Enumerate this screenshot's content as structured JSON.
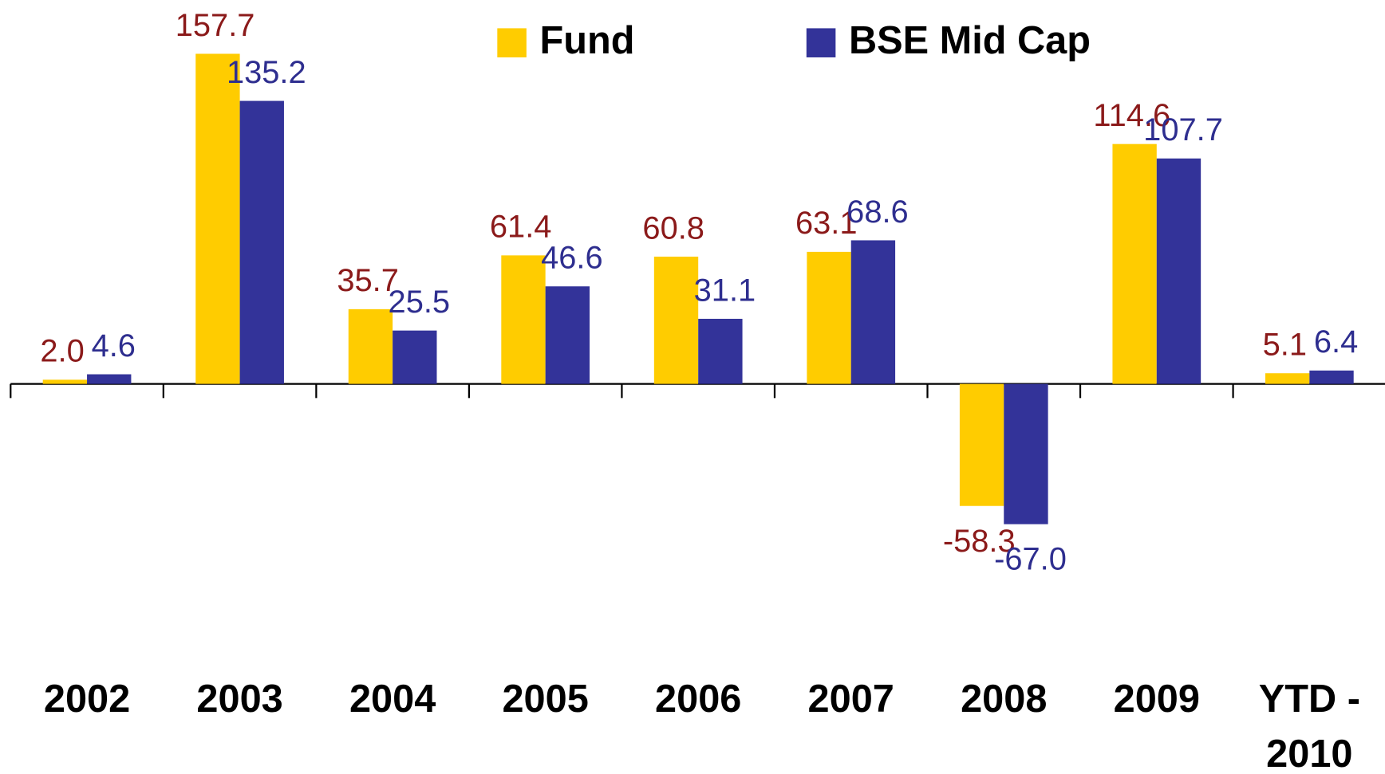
{
  "chart_data": {
    "type": "bar",
    "categories": [
      "2002",
      "2003",
      "2004",
      "2005",
      "2006",
      "2007",
      "2008",
      "2009",
      "YTD - 2010"
    ],
    "series": [
      {
        "name": "Fund",
        "color": "#ffcc00",
        "label_color": "#8b1a1a",
        "values": [
          2.0,
          157.7,
          35.7,
          61.4,
          60.8,
          63.1,
          -58.3,
          114.6,
          5.1
        ],
        "value_labels": [
          "2.0",
          "157.7",
          "35.7",
          "61.4",
          "60.8",
          "63.1",
          "-58.3",
          "114.6",
          "5.1"
        ]
      },
      {
        "name": "BSE Mid Cap",
        "color": "#333399",
        "label_color": "#2e2e8f",
        "values": [
          4.6,
          135.2,
          25.5,
          46.6,
          31.1,
          68.6,
          -67.0,
          107.7,
          6.4
        ],
        "value_labels": [
          "4.6",
          "135.2",
          "25.5",
          "46.6",
          "31.1",
          "68.6",
          "-67.0",
          "107.7",
          "6.4"
        ]
      }
    ]
  }
}
